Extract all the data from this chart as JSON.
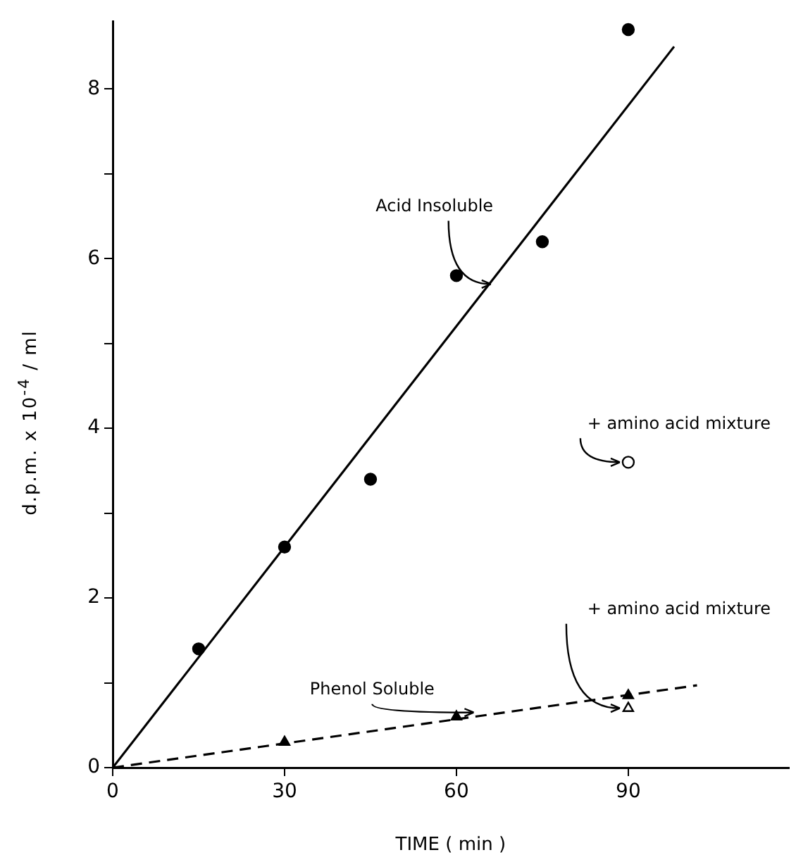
{
  "chart_data": {
    "type": "scatter",
    "xlabel": "TIME ( min )",
    "ylabel": "d.p.m. x 10$^{-4}$ / ml",
    "xlim": [
      0,
      118
    ],
    "xticks": [
      0,
      30,
      60,
      90
    ],
    "ylim": [
      0,
      8.8
    ],
    "yticks": [
      0,
      {
        "value": 1,
        "label": null
      },
      2,
      {
        "value": 3,
        "label": null
      },
      4,
      {
        "value": 5,
        "label": null
      },
      6,
      {
        "value": 7,
        "label": null
      },
      8
    ],
    "grid": false,
    "legend": false,
    "series": [
      {
        "marker": "circle",
        "color": "#000000",
        "x": [
          15,
          30,
          45,
          60,
          75,
          90
        ],
        "values": [
          1.4,
          2.6,
          3.4,
          5.8,
          6.2,
          8.7
        ]
      },
      {
        "type": "line",
        "marker": "none",
        "line_style": "solid",
        "color": "#000000",
        "x": [
          0,
          98
        ],
        "values": [
          0,
          8.5
        ]
      },
      {
        "marker": "triangle",
        "color": "#000000",
        "x": [
          30,
          60,
          90
        ],
        "values": [
          0.3,
          0.6,
          0.85
        ]
      },
      {
        "type": "line",
        "marker": "none",
        "line_style": "dashed",
        "color": "#000000",
        "x": [
          0,
          102
        ],
        "values": [
          0,
          0.97
        ]
      },
      {
        "marker": "circle",
        "color": "#ffffff",
        "x": [
          90
        ],
        "values": [
          3.6
        ]
      },
      {
        "marker": "triangle",
        "color": "#ffffff",
        "x": [
          90
        ],
        "values": [
          0.7
        ]
      }
    ],
    "annotations": [
      {
        "text": "Acid Insoluble",
        "x": 66,
        "y": 5.7
      },
      {
        "text": "+ amino acid mixture",
        "x": 90,
        "y": 3.6
      },
      {
        "text": "Phenol Soluble",
        "x": 63,
        "y": 0.65
      },
      {
        "text": "+ amino acid mixture",
        "x": 90,
        "y": 0.7
      }
    ]
  }
}
